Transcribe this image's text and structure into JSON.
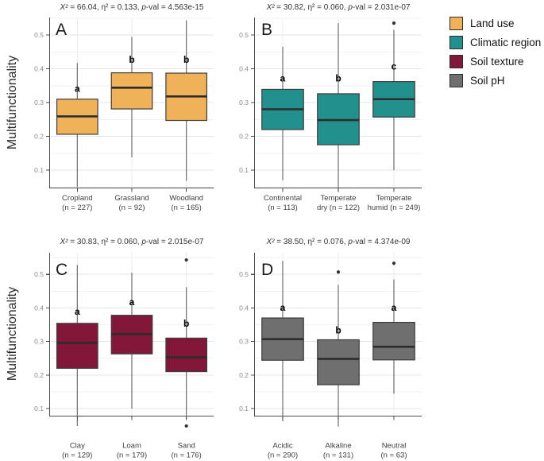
{
  "figure": {
    "ylabel_row1": "Multifunctionality",
    "ylabel_row2": "Multifunctionality",
    "background": "#ffffff"
  },
  "legend": {
    "items": [
      {
        "label": "Land use",
        "color": "#EFB259"
      },
      {
        "label": "Climatic region",
        "color": "#22908C"
      },
      {
        "label": "Soil texture",
        "color": "#82173A"
      },
      {
        "label": "Soil pH",
        "color": "#6F6F6F"
      }
    ]
  },
  "chart_data": {
    "type": "boxplot",
    "ylabel": "Multifunctionality",
    "ylim": [
      0.04,
      0.56
    ],
    "yticks": [
      "0.1",
      "0.2",
      "0.3",
      "0.4",
      "0.5"
    ],
    "grid": "on",
    "legend_position": "top-right",
    "stat_labels": {
      "x": "X²",
      "eta": "η²",
      "p": "p",
      "p_suffix": "-val",
      "eq": " = ",
      "sep": ", "
    },
    "panels": [
      {
        "panel_letter": "A",
        "legend_key": "Land use",
        "color": "#EFB259",
        "stats": {
          "x2": "66.04",
          "eta2": "0.133",
          "pval": "4.563e-15"
        },
        "groups": [
          {
            "name": "Cropland",
            "n": 227,
            "label_lines": [
              "Cropland",
              "(n = 227)"
            ],
            "whisker_low": 0.05,
            "q1": 0.206,
            "median": 0.259,
            "q3": 0.31,
            "whisker_high": 0.417,
            "outliers": [],
            "sig_letter": "a",
            "sig_y": 0.341
          },
          {
            "name": "Grassland",
            "n": 92,
            "label_lines": [
              "Grassland",
              "(n = 92)"
            ],
            "whisker_low": 0.138,
            "q1": 0.281,
            "median": 0.344,
            "q3": 0.388,
            "whisker_high": 0.494,
            "outliers": [],
            "sig_letter": "b",
            "sig_y": 0.427
          },
          {
            "name": "Woodland",
            "n": 165,
            "label_lines": [
              "Woodland",
              "(n = 165)"
            ],
            "whisker_low": 0.068,
            "q1": 0.247,
            "median": 0.318,
            "q3": 0.387,
            "whisker_high": 0.543,
            "outliers": [],
            "sig_letter": "b",
            "sig_y": 0.427
          }
        ]
      },
      {
        "panel_letter": "B",
        "legend_key": "Climatic region",
        "color": "#22908C",
        "stats": {
          "x2": "30.82",
          "eta2": "0.060",
          "pval": "2.031e-07"
        },
        "groups": [
          {
            "name": "Continental",
            "n": 113,
            "label_lines": [
              "Continental",
              "(n = 113)"
            ],
            "whisker_low": 0.07,
            "q1": 0.22,
            "median": 0.28,
            "q3": 0.339,
            "whisker_high": 0.465,
            "outliers": [],
            "sig_letter": "a",
            "sig_y": 0.372
          },
          {
            "name": "Temperate dry",
            "n": 122,
            "label_lines": [
              "Temperate",
              "dry (n = 122)"
            ],
            "whisker_low": 0.035,
            "q1": 0.175,
            "median": 0.248,
            "q3": 0.326,
            "whisker_high": 0.535,
            "outliers": [],
            "sig_letter": "b",
            "sig_y": 0.372
          },
          {
            "name": "Temperate humid",
            "n": 249,
            "label_lines": [
              "Temperate",
              "humid (n = 249)"
            ],
            "whisker_low": 0.1,
            "q1": 0.257,
            "median": 0.31,
            "q3": 0.362,
            "whisker_high": 0.515,
            "outliers": [
              0.535
            ],
            "sig_letter": "c",
            "sig_y": 0.407
          }
        ]
      },
      {
        "panel_letter": "C",
        "legend_key": "Soil texture",
        "color": "#82173A",
        "stats": {
          "x2": "30.83",
          "eta2": "0.060",
          "pval": "2.015e-07"
        },
        "groups": [
          {
            "name": "Clay",
            "n": 129,
            "label_lines": [
              "Clay",
              "(n = 129)"
            ],
            "whisker_low": 0.048,
            "q1": 0.22,
            "median": 0.296,
            "q3": 0.354,
            "whisker_high": 0.528,
            "outliers": [],
            "sig_letter": "a",
            "sig_y": 0.389
          },
          {
            "name": "Loam",
            "n": 179,
            "label_lines": [
              "Loam",
              "(n = 179)"
            ],
            "whisker_low": 0.1,
            "q1": 0.263,
            "median": 0.322,
            "q3": 0.378,
            "whisker_high": 0.505,
            "outliers": [],
            "sig_letter": "a",
            "sig_y": 0.418
          },
          {
            "name": "Sand",
            "n": 176,
            "label_lines": [
              "Sand",
              "(n = 176)"
            ],
            "whisker_low": 0.07,
            "q1": 0.21,
            "median": 0.253,
            "q3": 0.31,
            "whisker_high": 0.462,
            "outliers": [
              0.543,
              0.048
            ],
            "sig_letter": "b",
            "sig_y": 0.353
          }
        ]
      },
      {
        "panel_letter": "D",
        "legend_key": "Soil pH",
        "color": "#6F6F6F",
        "stats": {
          "x2": "38.50",
          "eta2": "0.076",
          "pval": "4.374e-09"
        },
        "groups": [
          {
            "name": "Acidic",
            "n": 290,
            "label_lines": [
              "Acidic",
              "(n = 290)"
            ],
            "whisker_low": 0.062,
            "q1": 0.244,
            "median": 0.307,
            "q3": 0.37,
            "whisker_high": 0.54,
            "outliers": [],
            "sig_letter": "a",
            "sig_y": 0.401
          },
          {
            "name": "Alkaline",
            "n": 131,
            "label_lines": [
              "Alkaline",
              "(n = 131)"
            ],
            "whisker_low": 0.046,
            "q1": 0.171,
            "median": 0.248,
            "q3": 0.305,
            "whisker_high": 0.469,
            "outliers": [
              0.507
            ],
            "sig_letter": "b",
            "sig_y": 0.334
          },
          {
            "name": "Neutral",
            "n": 63,
            "label_lines": [
              "Neutral",
              "(n = 63)"
            ],
            "whisker_low": 0.144,
            "q1": 0.245,
            "median": 0.284,
            "q3": 0.357,
            "whisker_high": 0.485,
            "outliers": [
              0.533
            ],
            "sig_letter": "a",
            "sig_y": 0.401
          }
        ]
      }
    ]
  }
}
